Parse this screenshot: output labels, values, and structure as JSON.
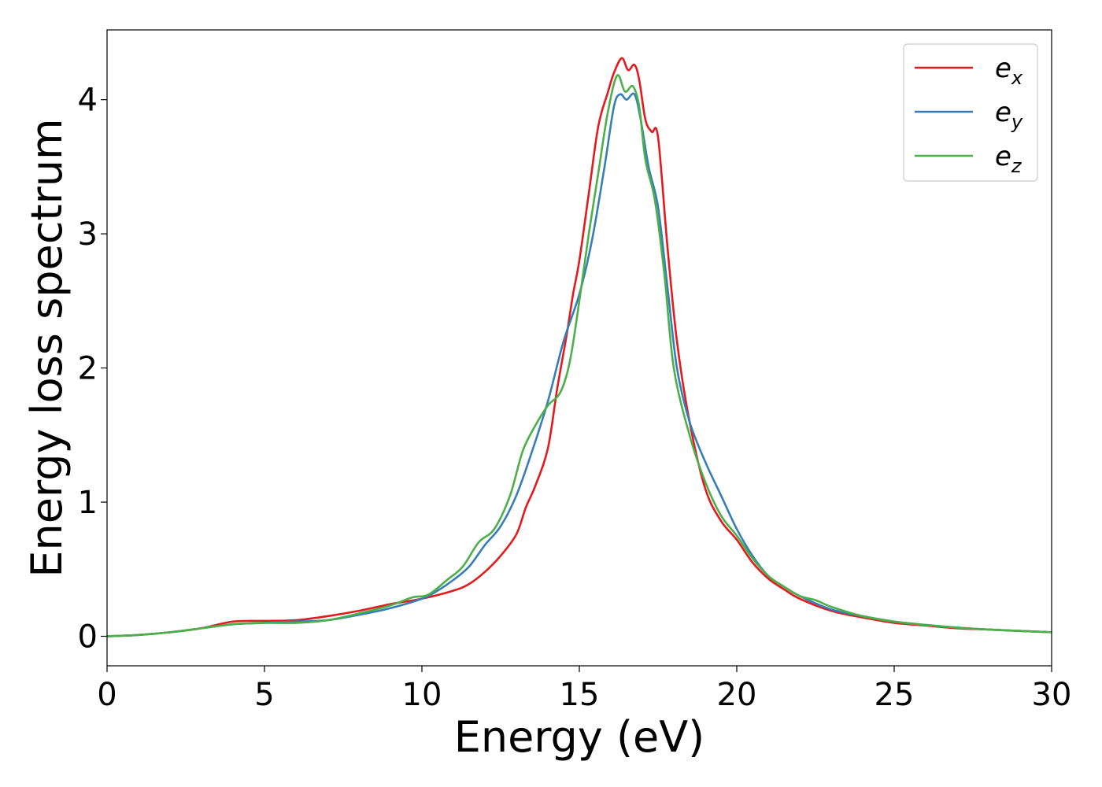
{
  "chart_data": {
    "type": "line",
    "xlabel": "Energy (eV)",
    "ylabel": "Energy loss spectrum",
    "xlim": [
      0,
      30
    ],
    "ylim": [
      -0.22,
      4.52
    ],
    "xticks": [
      0,
      5,
      10,
      15,
      20,
      25,
      30
    ],
    "xtick_labels": [
      "0",
      "5",
      "10",
      "15",
      "20",
      "25",
      "30"
    ],
    "yticks": [
      0,
      1,
      2,
      3,
      4
    ],
    "ytick_labels": [
      "0",
      "1",
      "2",
      "3",
      "4"
    ],
    "grid": false,
    "legend_position": "top-right",
    "series": [
      {
        "name": "e_x",
        "label_base": "e",
        "label_sub": "x",
        "color": "#e41a1c",
        "points": [
          [
            0,
            0
          ],
          [
            1,
            0.01
          ],
          [
            2,
            0.03
          ],
          [
            3,
            0.06
          ],
          [
            4,
            0.11
          ],
          [
            5,
            0.115
          ],
          [
            6,
            0.12
          ],
          [
            7,
            0.15
          ],
          [
            8,
            0.19
          ],
          [
            9,
            0.24
          ],
          [
            10,
            0.28
          ],
          [
            11,
            0.34
          ],
          [
            11.5,
            0.39
          ],
          [
            12,
            0.48
          ],
          [
            12.5,
            0.6
          ],
          [
            13,
            0.76
          ],
          [
            13.3,
            0.96
          ],
          [
            13.6,
            1.12
          ],
          [
            14,
            1.4
          ],
          [
            14.3,
            1.85
          ],
          [
            14.6,
            2.25
          ],
          [
            14.8,
            2.55
          ],
          [
            15,
            2.8
          ],
          [
            15.3,
            3.3
          ],
          [
            15.6,
            3.8
          ],
          [
            15.9,
            4.05
          ],
          [
            16.1,
            4.2
          ],
          [
            16.35,
            4.31
          ],
          [
            16.55,
            4.22
          ],
          [
            16.75,
            4.26
          ],
          [
            16.9,
            4.15
          ],
          [
            17.1,
            3.85
          ],
          [
            17.3,
            3.76
          ],
          [
            17.5,
            3.72
          ],
          [
            17.8,
            2.9
          ],
          [
            18.1,
            2.2
          ],
          [
            18.5,
            1.6
          ],
          [
            19,
            1.1
          ],
          [
            19.5,
            0.86
          ],
          [
            20,
            0.72
          ],
          [
            20.5,
            0.55
          ],
          [
            21,
            0.43
          ],
          [
            21.5,
            0.35
          ],
          [
            22,
            0.28
          ],
          [
            23,
            0.19
          ],
          [
            24,
            0.14
          ],
          [
            25,
            0.1
          ],
          [
            26,
            0.08
          ],
          [
            27,
            0.06
          ],
          [
            28,
            0.05
          ],
          [
            29,
            0.04
          ],
          [
            30,
            0.03
          ]
        ]
      },
      {
        "name": "e_y",
        "label_base": "e",
        "label_sub": "y",
        "color": "#377eb8",
        "points": [
          [
            0,
            0
          ],
          [
            1,
            0.01
          ],
          [
            2,
            0.03
          ],
          [
            3,
            0.06
          ],
          [
            4,
            0.09
          ],
          [
            5,
            0.1
          ],
          [
            6,
            0.11
          ],
          [
            7,
            0.12
          ],
          [
            8,
            0.16
          ],
          [
            9,
            0.21
          ],
          [
            10,
            0.28
          ],
          [
            10.5,
            0.34
          ],
          [
            11,
            0.42
          ],
          [
            11.5,
            0.52
          ],
          [
            12,
            0.68
          ],
          [
            12.5,
            0.82
          ],
          [
            13,
            1.05
          ],
          [
            13.5,
            1.38
          ],
          [
            14,
            1.75
          ],
          [
            14.5,
            2.2
          ],
          [
            15,
            2.55
          ],
          [
            15.4,
            2.95
          ],
          [
            15.8,
            3.5
          ],
          [
            16.1,
            3.95
          ],
          [
            16.3,
            4.04
          ],
          [
            16.5,
            4.0
          ],
          [
            16.75,
            4.04
          ],
          [
            16.95,
            3.85
          ],
          [
            17.2,
            3.5
          ],
          [
            17.5,
            3.2
          ],
          [
            17.8,
            2.6
          ],
          [
            18.1,
            2.0
          ],
          [
            18.5,
            1.6
          ],
          [
            19,
            1.3
          ],
          [
            19.5,
            1.05
          ],
          [
            20,
            0.8
          ],
          [
            20.5,
            0.6
          ],
          [
            21,
            0.45
          ],
          [
            21.5,
            0.37
          ],
          [
            22,
            0.3
          ],
          [
            23,
            0.2
          ],
          [
            24,
            0.15
          ],
          [
            25,
            0.11
          ],
          [
            26,
            0.085
          ],
          [
            27,
            0.065
          ],
          [
            28,
            0.05
          ],
          [
            29,
            0.04
          ],
          [
            30,
            0.03
          ]
        ]
      },
      {
        "name": "e_z",
        "label_base": "e",
        "label_sub": "z",
        "color": "#4daf4a",
        "points": [
          [
            0,
            0
          ],
          [
            1,
            0.01
          ],
          [
            2,
            0.03
          ],
          [
            3,
            0.06
          ],
          [
            4,
            0.09
          ],
          [
            5,
            0.1
          ],
          [
            6,
            0.1
          ],
          [
            7,
            0.12
          ],
          [
            8,
            0.17
          ],
          [
            9,
            0.23
          ],
          [
            9.7,
            0.29
          ],
          [
            10.2,
            0.31
          ],
          [
            10.8,
            0.42
          ],
          [
            11.3,
            0.52
          ],
          [
            11.8,
            0.7
          ],
          [
            12.3,
            0.8
          ],
          [
            12.8,
            1.05
          ],
          [
            13.2,
            1.38
          ],
          [
            13.6,
            1.57
          ],
          [
            14,
            1.72
          ],
          [
            14.4,
            1.82
          ],
          [
            14.7,
            2.05
          ],
          [
            15,
            2.5
          ],
          [
            15.3,
            3.0
          ],
          [
            15.6,
            3.45
          ],
          [
            15.9,
            3.9
          ],
          [
            16.2,
            4.18
          ],
          [
            16.45,
            4.06
          ],
          [
            16.7,
            4.1
          ],
          [
            16.9,
            3.95
          ],
          [
            17.1,
            3.55
          ],
          [
            17.4,
            3.25
          ],
          [
            17.7,
            2.7
          ],
          [
            18,
            2.0
          ],
          [
            18.5,
            1.5
          ],
          [
            19,
            1.15
          ],
          [
            19.5,
            0.9
          ],
          [
            20,
            0.75
          ],
          [
            20.5,
            0.58
          ],
          [
            21,
            0.45
          ],
          [
            21.5,
            0.37
          ],
          [
            22,
            0.3
          ],
          [
            22.5,
            0.27
          ],
          [
            23,
            0.22
          ],
          [
            24,
            0.15
          ],
          [
            25,
            0.11
          ],
          [
            26,
            0.085
          ],
          [
            27,
            0.065
          ],
          [
            28,
            0.05
          ],
          [
            29,
            0.04
          ],
          [
            30,
            0.03
          ]
        ]
      }
    ]
  }
}
